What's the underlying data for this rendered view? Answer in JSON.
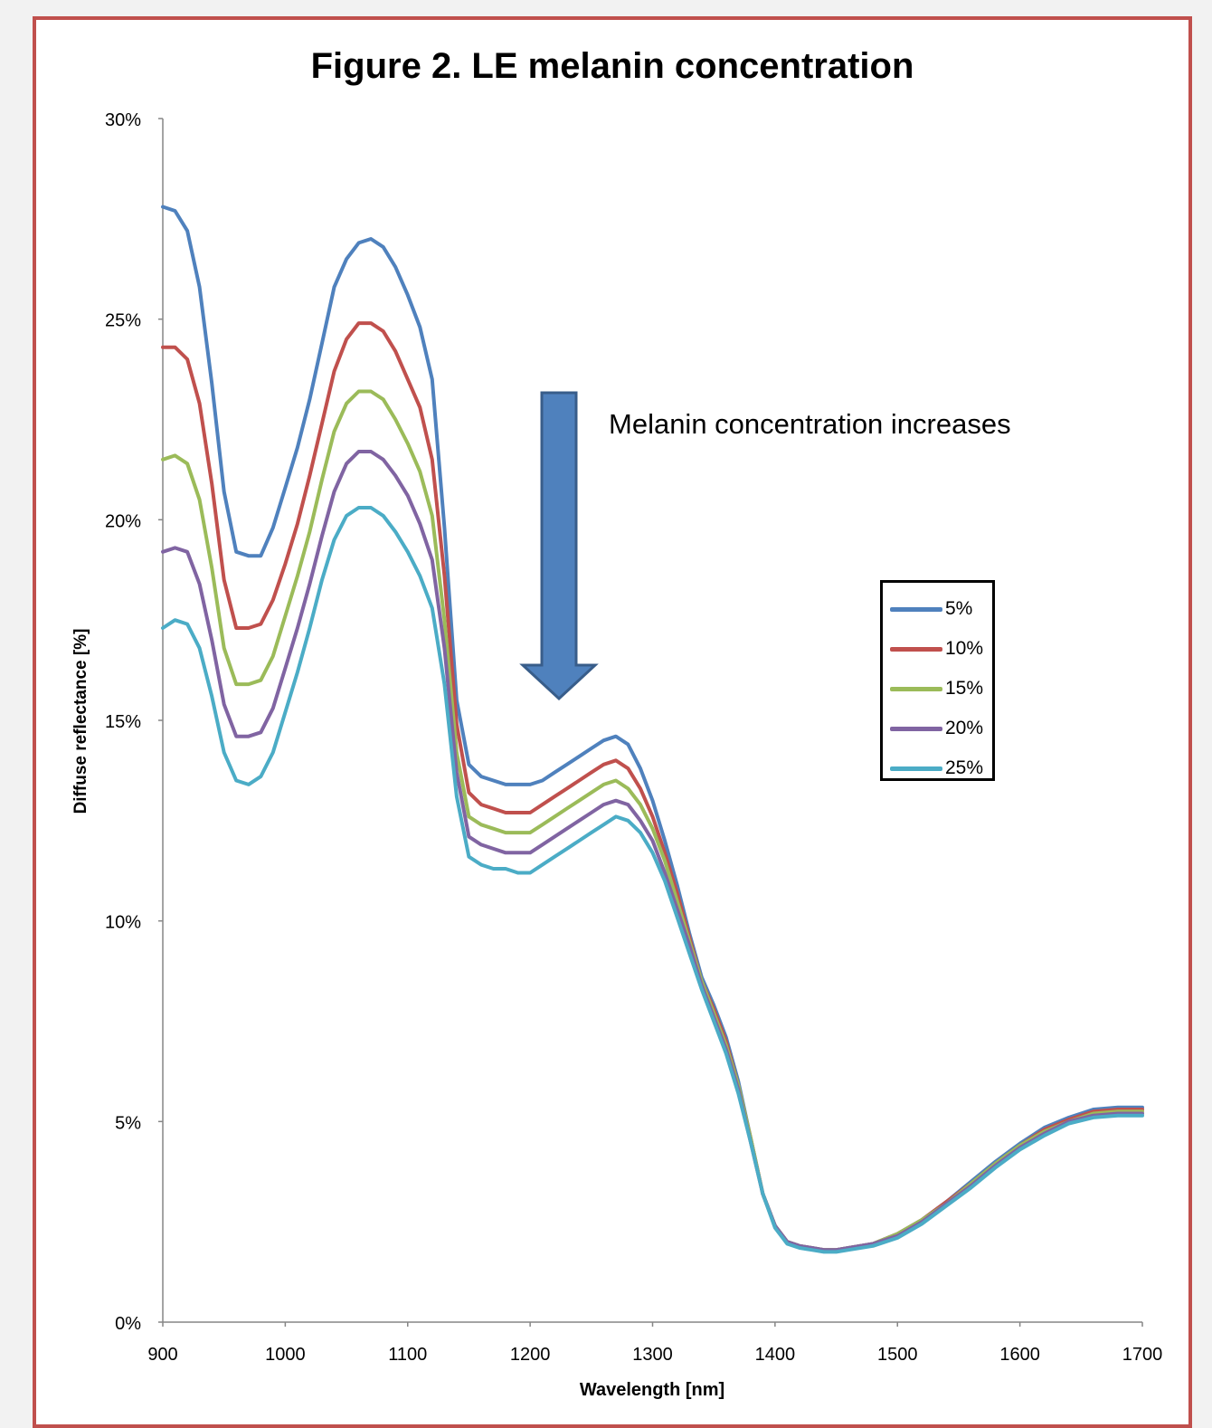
{
  "chart_data": {
    "type": "line",
    "title": "Figure 2. LE melanin concentration",
    "xlabel": "Wavelength [nm]",
    "ylabel": "Diffuse reflectance [%]",
    "xlim": [
      900,
      1700
    ],
    "ylim": [
      0,
      30
    ],
    "x_ticks": [
      "900",
      "1000",
      "1100",
      "1200",
      "1300",
      "1400",
      "1500",
      "1600",
      "1700"
    ],
    "y_ticks": [
      "0%",
      "5%",
      "10%",
      "15%",
      "20%",
      "25%",
      "30%"
    ],
    "grid": false,
    "legend_position": "right",
    "annotation": "Melanin concentration increases",
    "x": [
      900,
      910,
      920,
      930,
      940,
      950,
      960,
      970,
      980,
      990,
      1000,
      1010,
      1020,
      1030,
      1040,
      1050,
      1060,
      1070,
      1080,
      1090,
      1100,
      1110,
      1120,
      1130,
      1140,
      1150,
      1160,
      1170,
      1180,
      1190,
      1200,
      1210,
      1220,
      1230,
      1240,
      1250,
      1260,
      1270,
      1280,
      1290,
      1300,
      1310,
      1320,
      1330,
      1340,
      1350,
      1360,
      1370,
      1380,
      1390,
      1400,
      1410,
      1420,
      1430,
      1440,
      1450,
      1460,
      1480,
      1500,
      1520,
      1540,
      1560,
      1580,
      1600,
      1620,
      1640,
      1660,
      1680,
      1700
    ],
    "series": [
      {
        "name": "5%",
        "color": "#4f81bd",
        "values": [
          27.8,
          27.7,
          27.2,
          25.8,
          23.4,
          20.7,
          19.2,
          19.1,
          19.1,
          19.8,
          20.8,
          21.8,
          23.0,
          24.4,
          25.8,
          26.5,
          26.9,
          27.0,
          26.8,
          26.3,
          25.6,
          24.8,
          23.5,
          19.8,
          15.5,
          13.9,
          13.6,
          13.5,
          13.4,
          13.4,
          13.4,
          13.5,
          13.7,
          13.9,
          14.1,
          14.3,
          14.5,
          14.6,
          14.4,
          13.8,
          13.0,
          12.0,
          10.9,
          9.7,
          8.6,
          7.9,
          7.1,
          6.0,
          4.6,
          3.2,
          2.4,
          2.0,
          1.9,
          1.85,
          1.8,
          1.8,
          1.85,
          1.95,
          2.2,
          2.55,
          3.0,
          3.5,
          4.0,
          4.45,
          4.85,
          5.1,
          5.3,
          5.35,
          5.35
        ]
      },
      {
        "name": "10%",
        "color": "#c0504d",
        "values": [
          24.3,
          24.3,
          24.0,
          22.9,
          20.9,
          18.5,
          17.3,
          17.3,
          17.4,
          18.0,
          18.9,
          19.9,
          21.1,
          22.4,
          23.7,
          24.5,
          24.9,
          24.9,
          24.7,
          24.2,
          23.5,
          22.8,
          21.5,
          18.6,
          14.9,
          13.2,
          12.9,
          12.8,
          12.7,
          12.7,
          12.7,
          12.9,
          13.1,
          13.3,
          13.5,
          13.7,
          13.9,
          14.0,
          13.8,
          13.3,
          12.6,
          11.7,
          10.7,
          9.6,
          8.5,
          7.8,
          7.0,
          5.9,
          4.6,
          3.2,
          2.4,
          2.0,
          1.9,
          1.85,
          1.8,
          1.8,
          1.85,
          1.95,
          2.2,
          2.55,
          3.0,
          3.45,
          3.95,
          4.4,
          4.8,
          5.05,
          5.25,
          5.3,
          5.3
        ]
      },
      {
        "name": "15%",
        "color": "#9bbb59",
        "values": [
          21.5,
          21.6,
          21.4,
          20.5,
          18.8,
          16.8,
          15.9,
          15.9,
          16.0,
          16.6,
          17.6,
          18.6,
          19.7,
          21.0,
          22.2,
          22.9,
          23.2,
          23.2,
          23.0,
          22.5,
          21.9,
          21.2,
          20.1,
          17.5,
          14.2,
          12.6,
          12.4,
          12.3,
          12.2,
          12.2,
          12.2,
          12.4,
          12.6,
          12.8,
          13.0,
          13.2,
          13.4,
          13.5,
          13.3,
          12.9,
          12.3,
          11.5,
          10.5,
          9.5,
          8.5,
          7.7,
          6.9,
          5.9,
          4.6,
          3.2,
          2.4,
          2.0,
          1.9,
          1.85,
          1.8,
          1.8,
          1.85,
          1.95,
          2.2,
          2.55,
          2.95,
          3.45,
          3.95,
          4.4,
          4.75,
          5.0,
          5.2,
          5.25,
          5.25
        ]
      },
      {
        "name": "20%",
        "color": "#8064a2",
        "values": [
          19.2,
          19.3,
          19.2,
          18.4,
          17.0,
          15.4,
          14.6,
          14.6,
          14.7,
          15.3,
          16.3,
          17.3,
          18.4,
          19.6,
          20.7,
          21.4,
          21.7,
          21.7,
          21.5,
          21.1,
          20.6,
          19.9,
          19.0,
          16.8,
          13.7,
          12.1,
          11.9,
          11.8,
          11.7,
          11.7,
          11.7,
          11.9,
          12.1,
          12.3,
          12.5,
          12.7,
          12.9,
          13.0,
          12.9,
          12.5,
          12.0,
          11.2,
          10.3,
          9.4,
          8.4,
          7.6,
          6.8,
          5.8,
          4.5,
          3.2,
          2.4,
          2.0,
          1.9,
          1.85,
          1.8,
          1.8,
          1.85,
          1.95,
          2.15,
          2.5,
          2.95,
          3.4,
          3.9,
          4.35,
          4.7,
          5.0,
          5.15,
          5.2,
          5.2
        ]
      },
      {
        "name": "25%",
        "color": "#4bacc6",
        "values": [
          17.3,
          17.5,
          17.4,
          16.8,
          15.6,
          14.2,
          13.5,
          13.4,
          13.6,
          14.2,
          15.2,
          16.2,
          17.3,
          18.5,
          19.5,
          20.1,
          20.3,
          20.3,
          20.1,
          19.7,
          19.2,
          18.6,
          17.8,
          15.9,
          13.1,
          11.6,
          11.4,
          11.3,
          11.3,
          11.2,
          11.2,
          11.4,
          11.6,
          11.8,
          12.0,
          12.2,
          12.4,
          12.6,
          12.5,
          12.2,
          11.7,
          11.0,
          10.1,
          9.2,
          8.3,
          7.5,
          6.7,
          5.7,
          4.5,
          3.2,
          2.35,
          1.95,
          1.85,
          1.8,
          1.75,
          1.75,
          1.8,
          1.9,
          2.1,
          2.45,
          2.9,
          3.35,
          3.85,
          4.3,
          4.65,
          4.95,
          5.1,
          5.15,
          5.15
        ]
      }
    ]
  }
}
